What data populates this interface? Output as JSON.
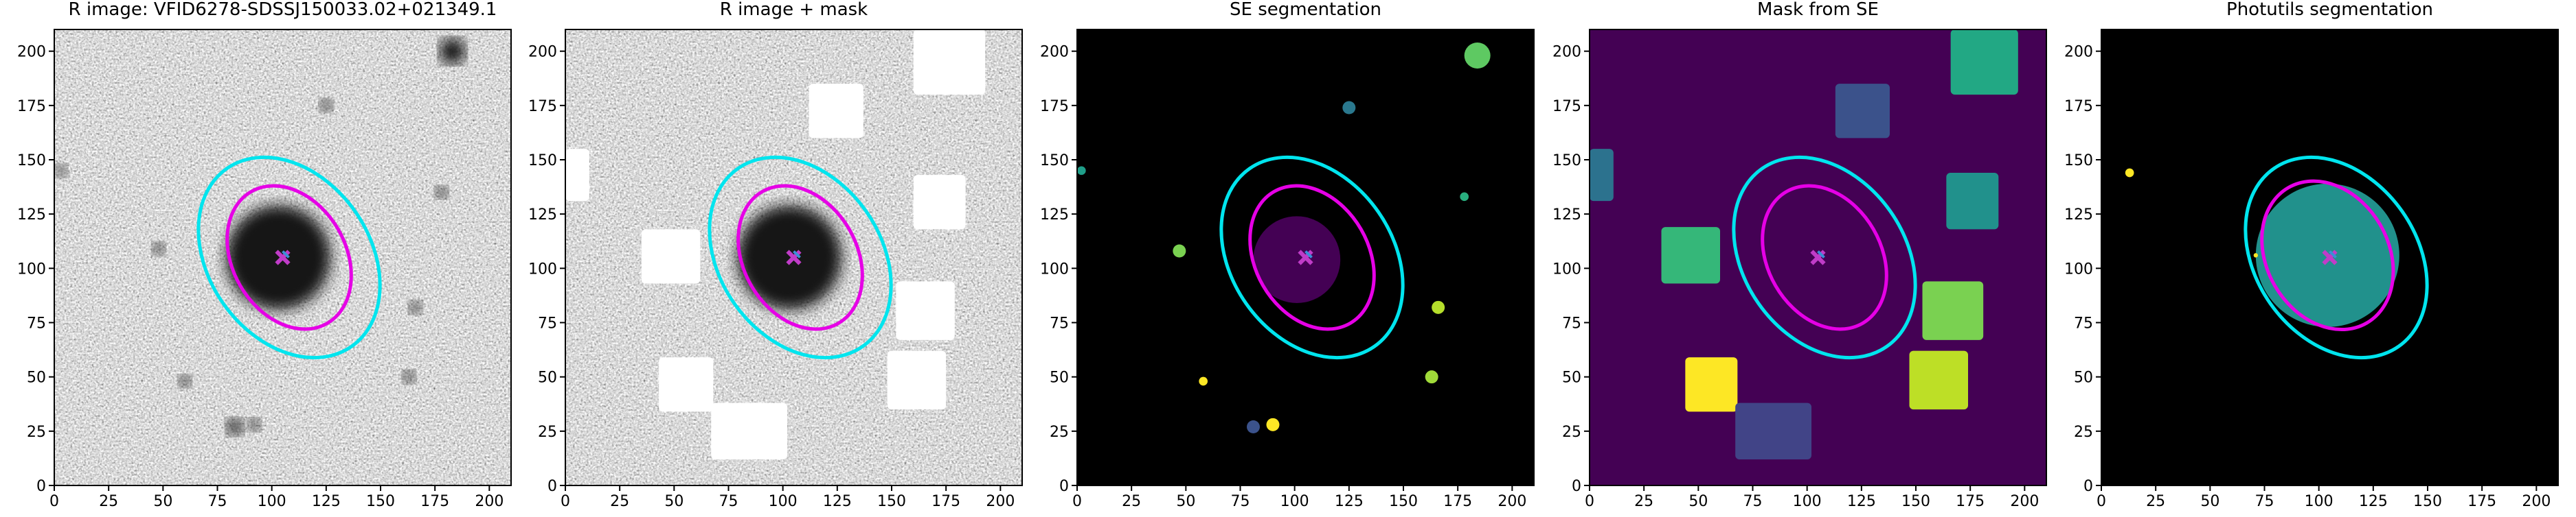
{
  "chart_data": [
    {
      "type": "image",
      "title": "R image: VFID6278-SDSSJ150033.02+021349.1",
      "background": "noise",
      "xlim": [
        0,
        210
      ],
      "ylim": [
        0,
        210
      ],
      "xticks": [
        0,
        25,
        50,
        75,
        100,
        125,
        150,
        175,
        200
      ],
      "yticks": [
        0,
        25,
        50,
        75,
        100,
        125,
        150,
        175,
        200
      ],
      "regions": [
        {
          "shape": "circle",
          "x": 103,
          "y": 105,
          "r": 24,
          "color": "#151515"
        },
        {
          "shape": "circle",
          "x": 183,
          "y": 200,
          "r": 6,
          "color": "#111111"
        },
        {
          "shape": "circle",
          "x": 125,
          "y": 175,
          "r": 3,
          "color": "#222222"
        },
        {
          "shape": "circle",
          "x": 48,
          "y": 109,
          "r": 3,
          "color": "#222222"
        },
        {
          "shape": "circle",
          "x": 178,
          "y": 135,
          "r": 3,
          "color": "#222222"
        },
        {
          "shape": "circle",
          "x": 166,
          "y": 82,
          "r": 3,
          "color": "#222222"
        },
        {
          "shape": "circle",
          "x": 163,
          "y": 50,
          "r": 3,
          "color": "#222222"
        },
        {
          "shape": "circle",
          "x": 60,
          "y": 48,
          "r": 3,
          "color": "#222222"
        },
        {
          "shape": "circle",
          "x": 83,
          "y": 27,
          "r": 4,
          "color": "#222222"
        },
        {
          "shape": "circle",
          "x": 92,
          "y": 28,
          "r": 3,
          "color": "#222222"
        },
        {
          "shape": "circle",
          "x": 3,
          "y": 145,
          "r": 3,
          "color": "#333333"
        }
      ],
      "ellipses": [
        {
          "x": 108,
          "y": 105,
          "a": 50,
          "b": 37,
          "angle": -55,
          "color": "#00e5ee"
        },
        {
          "x": 108,
          "y": 105,
          "a": 35,
          "b": 26,
          "angle": -60,
          "color": "#e600e6"
        }
      ],
      "marker": {
        "x": 105,
        "y": 105
      }
    },
    {
      "type": "image",
      "title": "R image + mask",
      "background": "noise",
      "xlim": [
        0,
        210
      ],
      "ylim": [
        0,
        210
      ],
      "xticks": [
        0,
        25,
        50,
        75,
        100,
        125,
        150,
        175,
        200
      ],
      "yticks": [
        0,
        25,
        50,
        75,
        100,
        125,
        150,
        175,
        200
      ],
      "regions": [
        {
          "shape": "circle",
          "x": 103,
          "y": 105,
          "r": 24,
          "color": "#151515"
        },
        {
          "shape": "rect",
          "x0": 160,
          "x1": 193,
          "y0": 180,
          "y1": 210,
          "color": "#ffffff"
        },
        {
          "shape": "rect",
          "x0": 112,
          "x1": 137,
          "y0": 160,
          "y1": 185,
          "color": "#ffffff"
        },
        {
          "shape": "rect",
          "x0": 0,
          "x1": 11,
          "y0": 131,
          "y1": 155,
          "color": "#ffffff"
        },
        {
          "shape": "rect",
          "x0": 160,
          "x1": 184,
          "y0": 118,
          "y1": 143,
          "color": "#ffffff"
        },
        {
          "shape": "rect",
          "x0": 35,
          "x1": 62,
          "y0": 93,
          "y1": 118,
          "color": "#ffffff"
        },
        {
          "shape": "rect",
          "x0": 152,
          "x1": 179,
          "y0": 67,
          "y1": 94,
          "color": "#ffffff"
        },
        {
          "shape": "rect",
          "x0": 43,
          "x1": 68,
          "y0": 34,
          "y1": 59,
          "color": "#ffffff"
        },
        {
          "shape": "rect",
          "x0": 148,
          "x1": 175,
          "y0": 35,
          "y1": 62,
          "color": "#ffffff"
        },
        {
          "shape": "rect",
          "x0": 67,
          "x1": 102,
          "y0": 12,
          "y1": 38,
          "color": "#ffffff"
        }
      ],
      "ellipses": [
        {
          "x": 108,
          "y": 105,
          "a": 50,
          "b": 37,
          "angle": -55,
          "color": "#00e5ee"
        },
        {
          "x": 108,
          "y": 105,
          "a": 35,
          "b": 26,
          "angle": -60,
          "color": "#e600e6"
        }
      ],
      "marker": {
        "x": 105,
        "y": 105
      }
    },
    {
      "type": "image",
      "title": "SE segmentation",
      "background": "#000000",
      "xlim": [
        0,
        210
      ],
      "ylim": [
        0,
        210
      ],
      "xticks": [
        0,
        25,
        50,
        75,
        100,
        125,
        150,
        175,
        200
      ],
      "yticks": [
        0,
        25,
        50,
        75,
        100,
        125,
        150,
        175,
        200
      ],
      "regions": [
        {
          "shape": "circle",
          "x": 101,
          "y": 104,
          "r": 20,
          "color": "#440154"
        },
        {
          "shape": "circle",
          "x": 184,
          "y": 198,
          "r": 6,
          "color": "#5ec962"
        },
        {
          "shape": "circle",
          "x": 125,
          "y": 174,
          "r": 3,
          "color": "#2a788e"
        },
        {
          "shape": "circle",
          "x": 2,
          "y": 145,
          "r": 2,
          "color": "#1f9e89"
        },
        {
          "shape": "circle",
          "x": 47,
          "y": 108,
          "r": 3,
          "color": "#7ad151"
        },
        {
          "shape": "circle",
          "x": 178,
          "y": 133,
          "r": 2,
          "color": "#29af7f"
        },
        {
          "shape": "circle",
          "x": 166,
          "y": 82,
          "r": 3,
          "color": "#b5de2b"
        },
        {
          "shape": "circle",
          "x": 163,
          "y": 50,
          "r": 3,
          "color": "#a0da39"
        },
        {
          "shape": "circle",
          "x": 58,
          "y": 48,
          "r": 2,
          "color": "#fde725"
        },
        {
          "shape": "circle",
          "x": 81,
          "y": 27,
          "r": 3,
          "color": "#3b528b"
        },
        {
          "shape": "circle",
          "x": 90,
          "y": 28,
          "r": 3,
          "color": "#fde725"
        }
      ],
      "ellipses": [
        {
          "x": 108,
          "y": 105,
          "a": 50,
          "b": 37,
          "angle": -55,
          "color": "#00e5ee"
        },
        {
          "x": 108,
          "y": 105,
          "a": 35,
          "b": 26,
          "angle": -60,
          "color": "#e600e6"
        }
      ],
      "marker": {
        "x": 105,
        "y": 105
      }
    },
    {
      "type": "image",
      "title": "Mask from SE",
      "background": "#440154",
      "xlim": [
        0,
        210
      ],
      "ylim": [
        0,
        210
      ],
      "xticks": [
        0,
        25,
        50,
        75,
        100,
        125,
        150,
        175,
        200
      ],
      "yticks": [
        0,
        25,
        50,
        75,
        100,
        125,
        150,
        175,
        200
      ],
      "regions": [
        {
          "shape": "rect",
          "x0": 166,
          "x1": 197,
          "y0": 180,
          "y1": 210,
          "color": "#22a884"
        },
        {
          "shape": "rect",
          "x0": 113,
          "x1": 138,
          "y0": 160,
          "y1": 185,
          "color": "#3b528b"
        },
        {
          "shape": "rect",
          "x0": 0,
          "x1": 11,
          "y0": 131,
          "y1": 155,
          "color": "#2c728e"
        },
        {
          "shape": "rect",
          "x0": 164,
          "x1": 188,
          "y0": 118,
          "y1": 144,
          "color": "#21918c"
        },
        {
          "shape": "rect",
          "x0": 33,
          "x1": 60,
          "y0": 93,
          "y1": 119,
          "color": "#35b779"
        },
        {
          "shape": "rect",
          "x0": 153,
          "x1": 181,
          "y0": 67,
          "y1": 94,
          "color": "#7ad151"
        },
        {
          "shape": "rect",
          "x0": 147,
          "x1": 174,
          "y0": 35,
          "y1": 62,
          "color": "#bddf26"
        },
        {
          "shape": "rect",
          "x0": 44,
          "x1": 68,
          "y0": 34,
          "y1": 59,
          "color": "#fde725"
        },
        {
          "shape": "rect",
          "x0": 67,
          "x1": 102,
          "y0": 12,
          "y1": 38,
          "color": "#414487"
        }
      ],
      "ellipses": [
        {
          "x": 108,
          "y": 105,
          "a": 50,
          "b": 37,
          "angle": -55,
          "color": "#00e5ee"
        },
        {
          "x": 108,
          "y": 105,
          "a": 35,
          "b": 26,
          "angle": -60,
          "color": "#e600e6"
        }
      ],
      "marker": {
        "x": 105,
        "y": 105
      }
    },
    {
      "type": "image",
      "title": "Photutils segmentation",
      "background": "#000000",
      "xlim": [
        0,
        210
      ],
      "ylim": [
        0,
        210
      ],
      "xticks": [
        0,
        25,
        50,
        75,
        100,
        125,
        150,
        175,
        200
      ],
      "yticks": [
        0,
        25,
        50,
        75,
        100,
        125,
        150,
        175,
        200
      ],
      "regions": [
        {
          "shape": "circle",
          "x": 104,
          "y": 106,
          "r": 33,
          "color": "#21918c"
        },
        {
          "shape": "circle",
          "x": 13,
          "y": 144,
          "r": 2,
          "color": "#fde725"
        },
        {
          "shape": "circle",
          "x": 71,
          "y": 106,
          "r": 1,
          "color": "#fde725"
        }
      ],
      "ellipses": [
        {
          "x": 108,
          "y": 105,
          "a": 50,
          "b": 37,
          "angle": -55,
          "color": "#00e5ee"
        },
        {
          "x": 104,
          "y": 106,
          "a": 36,
          "b": 28,
          "angle": -60,
          "color": "#e600e6"
        }
      ],
      "marker": {
        "x": 105,
        "y": 105
      }
    }
  ]
}
